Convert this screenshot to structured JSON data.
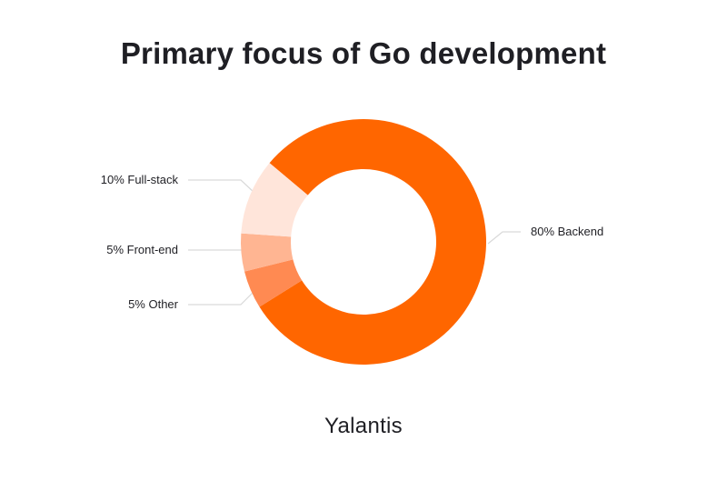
{
  "title": "Primary focus of Go development",
  "brand": {
    "name": "Yalantis",
    "accent": "#FF6600"
  },
  "colors": {
    "backend": "#FF6600",
    "other": "#FF8A52",
    "front_end": "#FFB592",
    "full_stack": "#FFE5DA",
    "leader_line": "#D9D9D9"
  },
  "labels": {
    "full_stack": "10% Full-stack",
    "front_end": "5% Front-end",
    "other": "5% Other",
    "backend": "80% Backend"
  },
  "chart_data": {
    "type": "pie",
    "subtype": "donut",
    "title": "Primary focus of Go development",
    "categories": [
      "Backend",
      "Full-stack",
      "Front-end",
      "Other"
    ],
    "values": [
      80,
      10,
      5,
      5
    ],
    "unit": "%",
    "labels": [
      "80% Backend",
      "10% Full-stack",
      "5% Front-end",
      "5% Other"
    ],
    "colors": [
      "#FF6600",
      "#FFE5DA",
      "#FFB592",
      "#FF8A52"
    ],
    "legend": "none (callout labels with leader lines)"
  }
}
